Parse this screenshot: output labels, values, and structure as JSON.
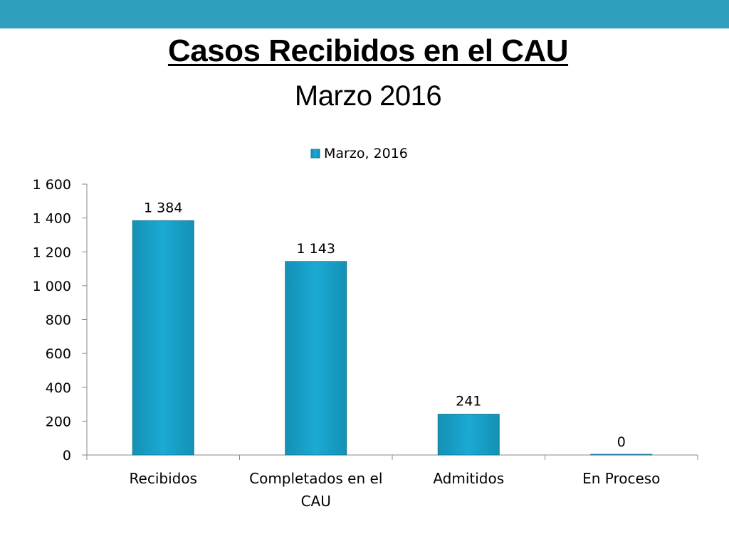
{
  "header": {
    "title": "Casos Recibidos en el CAU",
    "subtitle": "Marzo 2016"
  },
  "colors": {
    "top_bar": "#2f9fbf",
    "bar_fill": "#1aa6cf",
    "bar_stroke": "#167a99",
    "axis": "#888888"
  },
  "chart_data": {
    "type": "bar",
    "categories": [
      "Recibidos",
      "Completados en el CAU",
      "Admitidos",
      "En Proceso"
    ],
    "category_lines": [
      [
        "Recibidos"
      ],
      [
        "Completados en el",
        "CAU"
      ],
      [
        "Admitidos"
      ],
      [
        "En Proceso"
      ]
    ],
    "series": [
      {
        "name": "Marzo, 2016",
        "values": [
          1384,
          1143,
          241,
          0
        ]
      }
    ],
    "data_labels": [
      "1 384",
      "1 143",
      "241",
      "0"
    ],
    "y_ticks": [
      0,
      200,
      400,
      600,
      800,
      1000,
      1200,
      1400,
      1600
    ],
    "y_tick_labels": [
      "0",
      "200",
      "400",
      "600",
      "800",
      "1 000",
      "1 200",
      "1 400",
      "1 600"
    ],
    "ylim": [
      0,
      1600
    ],
    "grid": false,
    "legend_position": "top"
  }
}
